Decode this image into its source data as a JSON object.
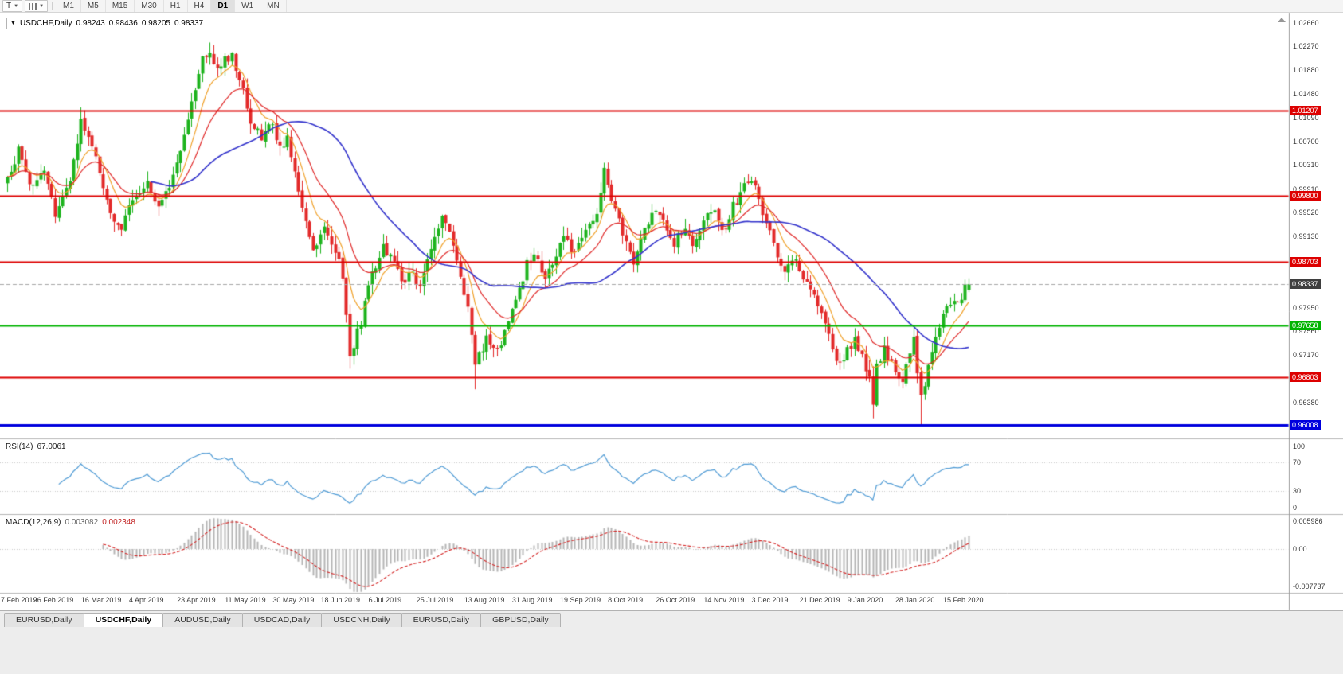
{
  "icons": {
    "collapse_triangle": "▼",
    "dropdown_caret": "▼"
  },
  "colors": {
    "background": "#ffffff",
    "candle_up": "#1db31d",
    "candle_down": "#e32a2a",
    "rsi_line": "#4f9bd5",
    "macd_histogram": "#b5b5b5",
    "macd_signal": "#d42222",
    "axis_text": "#3a3a3a"
  },
  "toolbar": {
    "templates_label": "T",
    "timeframes": [
      "M1",
      "M5",
      "M15",
      "M30",
      "H1",
      "H4",
      "D1",
      "W1",
      "MN"
    ],
    "active_timeframe": "D1"
  },
  "chart": {
    "title": "USDCHF,Daily",
    "ohlc": {
      "open": "0.98243",
      "high": "0.98436",
      "low": "0.98205",
      "close": "0.98337"
    },
    "y_axis_labels": [
      "1.02660",
      "1.02270",
      "1.01880",
      "1.01480",
      "1.01090",
      "1.00700",
      "1.00310",
      "0.99910",
      "0.99520",
      "0.99130",
      "0.98730",
      "0.98340",
      "0.97950",
      "0.97560",
      "0.97170",
      "0.96770",
      "0.96380",
      "0.95990"
    ],
    "x_axis_labels": [
      "7 Feb 2019",
      "26 Feb 2019",
      "16 Mar 2019",
      "4 Apr 2019",
      "23 Apr 2019",
      "11 May 2019",
      "30 May 2019",
      "18 Jun 2019",
      "6 Jul 2019",
      "25 Jul 2019",
      "13 Aug 2019",
      "31 Aug 2019",
      "19 Sep 2019",
      "8 Oct 2019",
      "26 Oct 2019",
      "14 Nov 2019",
      "3 Dec 2019",
      "21 Dec 2019",
      "9 Jan 2020",
      "28 Jan 2020",
      "15 Feb 2020"
    ],
    "hlines": [
      {
        "price": 1.01207,
        "label": "1.01207",
        "color": "#dd0000",
        "width": 2
      },
      {
        "price": 0.998,
        "label": "0.99800",
        "color": "#dd0000",
        "width": 2
      },
      {
        "price": 0.98703,
        "label": "0.98703",
        "color": "#dd0000",
        "width": 2
      },
      {
        "price": 0.97658,
        "label": "0.97658",
        "color": "#00b400",
        "width": 2
      },
      {
        "price": 0.96803,
        "label": "0.96803",
        "color": "#dd0000",
        "width": 2
      },
      {
        "price": 0.96008,
        "label": "0.96008",
        "color": "#0000dd",
        "width": 3
      }
    ],
    "current_price": {
      "value": 0.98337,
      "label": "0.98337",
      "tag_color": "#3f3f3f"
    }
  },
  "chart_data": {
    "type": "candlestick",
    "symbol": "USDCHF",
    "timeframe": "Daily",
    "num_candles": 262,
    "first_label_index": 1,
    "candles_per_label": 13,
    "price_axis": {
      "top": 1.028,
      "bottom": 0.958
    },
    "horizontal_levels": [
      1.01207,
      0.998,
      0.98703,
      0.97658,
      0.96803,
      0.96008
    ],
    "last_candle": {
      "open": 0.98243,
      "high": 0.98436,
      "low": 0.98205,
      "close": 0.98337
    },
    "anchors": [
      [
        0,
        1.0005
      ],
      [
        3,
        1.0055
      ],
      [
        7,
        0.999
      ],
      [
        10,
        1.0028
      ],
      [
        13,
        0.9948
      ],
      [
        16,
        0.9985
      ],
      [
        18,
        1.004
      ],
      [
        20,
        1.0105
      ],
      [
        23,
        1.0058
      ],
      [
        26,
        1.0
      ],
      [
        29,
        0.9938
      ],
      [
        31,
        0.9926
      ],
      [
        34,
        0.9975
      ],
      [
        38,
        1.0
      ],
      [
        41,
        0.9962
      ],
      [
        44,
        1.0
      ],
      [
        47,
        1.0058
      ],
      [
        50,
        1.013
      ],
      [
        52,
        1.0185
      ],
      [
        54,
        1.0218
      ],
      [
        57,
        1.0188
      ],
      [
        59,
        1.0205
      ],
      [
        61,
        1.0212
      ],
      [
        64,
        1.015
      ],
      [
        66,
        1.0108
      ],
      [
        69,
        1.0078
      ],
      [
        72,
        1.0098
      ],
      [
        74,
        1.0058
      ],
      [
        76,
        1.008
      ],
      [
        79,
        0.9985
      ],
      [
        81,
        0.994
      ],
      [
        83,
        0.989
      ],
      [
        86,
        0.9922
      ],
      [
        89,
        0.9885
      ],
      [
        91,
        0.9852
      ],
      [
        93,
        0.9718
      ],
      [
        96,
        0.9772
      ],
      [
        99,
        0.9855
      ],
      [
        102,
        0.9895
      ],
      [
        105,
        0.9868
      ],
      [
        107,
        0.9835
      ],
      [
        110,
        0.9856
      ],
      [
        112,
        0.9825
      ],
      [
        115,
        0.9895
      ],
      [
        118,
        0.9948
      ],
      [
        122,
        0.9878
      ],
      [
        125,
        0.979
      ],
      [
        127,
        0.97
      ],
      [
        130,
        0.9746
      ],
      [
        133,
        0.9722
      ],
      [
        135,
        0.976
      ],
      [
        138,
        0.98
      ],
      [
        141,
        0.9865
      ],
      [
        143,
        0.988
      ],
      [
        146,
        0.984
      ],
      [
        149,
        0.988
      ],
      [
        151,
        0.991
      ],
      [
        154,
        0.988
      ],
      [
        157,
        0.993
      ],
      [
        160,
        0.9952
      ],
      [
        162,
        1.0018
      ],
      [
        165,
        0.996
      ],
      [
        168,
        0.9898
      ],
      [
        170,
        0.987
      ],
      [
        173,
        0.992
      ],
      [
        176,
        0.9958
      ],
      [
        179,
        0.993
      ],
      [
        181,
        0.99
      ],
      [
        184,
        0.9932
      ],
      [
        186,
        0.99
      ],
      [
        189,
        0.9936
      ],
      [
        192,
        0.9955
      ],
      [
        195,
        0.992
      ],
      [
        197,
        0.9965
      ],
      [
        200,
        0.9992
      ],
      [
        202,
        1.0012
      ],
      [
        204,
        0.9968
      ],
      [
        207,
        0.9918
      ],
      [
        209,
        0.9878
      ],
      [
        211,
        0.985
      ],
      [
        214,
        0.9876
      ],
      [
        216,
        0.984
      ],
      [
        219,
        0.9812
      ],
      [
        221,
        0.979
      ],
      [
        223,
        0.975
      ],
      [
        225,
        0.97
      ],
      [
        228,
        0.9722
      ],
      [
        230,
        0.9745
      ],
      [
        232,
        0.971
      ],
      [
        234,
        0.9678
      ],
      [
        235,
        0.964
      ],
      [
        236,
        0.97
      ],
      [
        238,
        0.9726
      ],
      [
        240,
        0.97
      ],
      [
        243,
        0.968
      ],
      [
        245,
        0.9716
      ],
      [
        246,
        0.9745
      ],
      [
        248,
        0.9642
      ],
      [
        250,
        0.97
      ],
      [
        252,
        0.9748
      ],
      [
        254,
        0.9778
      ],
      [
        256,
        0.9805
      ],
      [
        258,
        0.9798
      ],
      [
        260,
        0.9825
      ],
      [
        261,
        0.98337
      ]
    ],
    "spikes": [
      {
        "i": 20,
        "high": 1.0126
      },
      {
        "i": 93,
        "low": 0.9694
      },
      {
        "i": 127,
        "low": 0.966
      },
      {
        "i": 235,
        "low": 0.9612
      },
      {
        "i": 248,
        "low": 0.96
      }
    ],
    "moving_averages": [
      {
        "name": "fast-ma",
        "period": 8,
        "type": "ema",
        "color": "#f0a028"
      },
      {
        "name": "mid-ma",
        "period": 18,
        "type": "ema",
        "color": "#e02828"
      },
      {
        "name": "slow-ma",
        "period": 40,
        "type": "sma",
        "color": "#3333cc"
      }
    ]
  },
  "rsi": {
    "label": "RSI(14)",
    "period": 14,
    "value": "67.0061",
    "axis_labels": [
      "100",
      "70",
      "30",
      "0"
    ],
    "levels": [
      70,
      30
    ],
    "range": [
      0,
      100
    ]
  },
  "macd": {
    "label": "MACD(12,26,9)",
    "fast": 12,
    "slow": 26,
    "signal_period": 9,
    "main_value": "0.003082",
    "signal_value": "0.002348",
    "axis_labels": [
      "0.005986",
      "0.00",
      "-0.007737"
    ],
    "range": {
      "max": 0.005986,
      "min": -0.007737
    }
  },
  "tabs": {
    "items": [
      "EURUSD,Daily",
      "USDCHF,Daily",
      "AUDUSD,Daily",
      "USDCAD,Daily",
      "USDCNH,Daily",
      "EURUSD,Daily",
      "GBPUSD,Daily"
    ],
    "active_index": 1
  }
}
